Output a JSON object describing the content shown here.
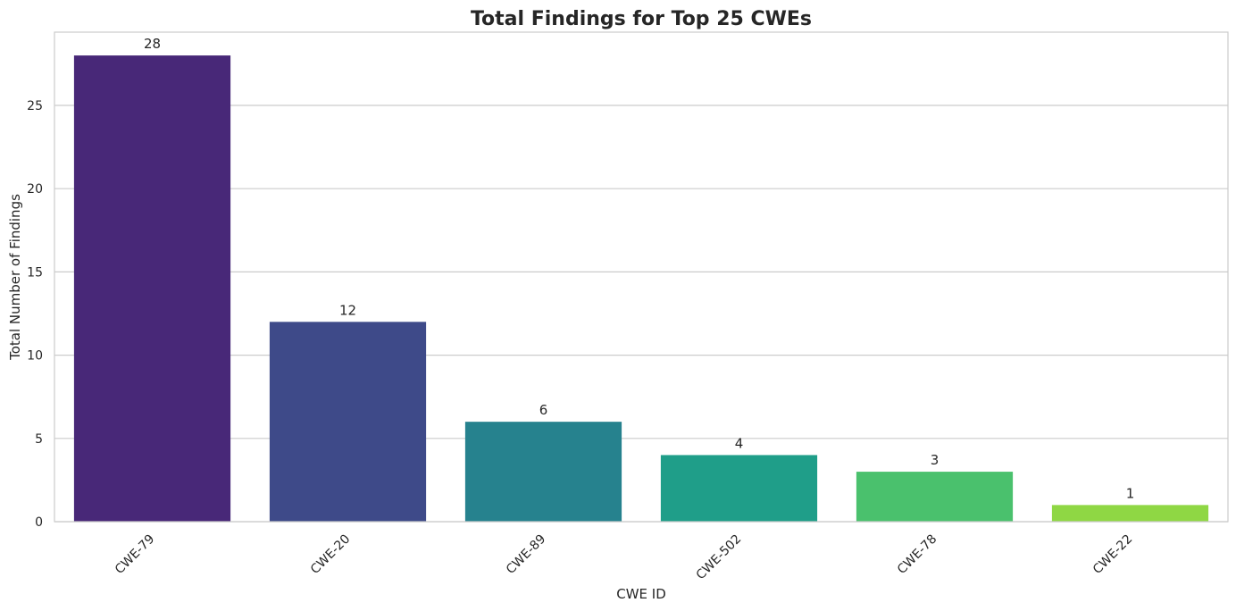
{
  "chart_data": {
    "type": "bar",
    "title": "Total Findings for Top 25 CWEs",
    "xlabel": "CWE ID",
    "ylabel": "Total Number of Findings",
    "categories": [
      "CWE-79",
      "CWE-20",
      "CWE-89",
      "CWE-502",
      "CWE-78",
      "CWE-22"
    ],
    "values": [
      28,
      12,
      6,
      4,
      3,
      1
    ],
    "colors": [
      "#482878",
      "#3e4a89",
      "#26828e",
      "#1f9e89",
      "#4ac16d",
      "#8fd744"
    ],
    "ylim": [
      0,
      29.4
    ],
    "yticks": [
      0,
      5,
      10,
      15,
      20,
      25
    ],
    "grid": true,
    "legend": "none"
  }
}
